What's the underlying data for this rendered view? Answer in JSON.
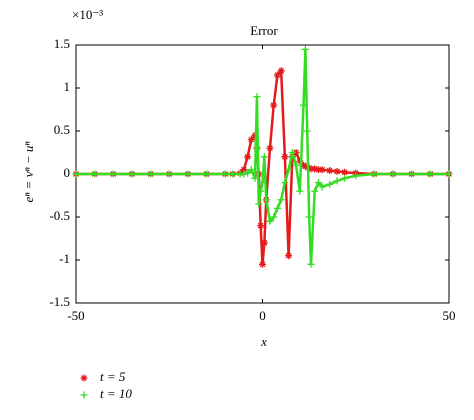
{
  "chart_data": {
    "type": "scatter",
    "title": "Error",
    "exponent_label": "×10⁻³",
    "xlabel": "x",
    "ylabel": "eⁿ = vⁿ − uⁿ",
    "x": [
      -50,
      -45,
      -40,
      -35,
      -30,
      -25,
      -20,
      -15,
      -10,
      -8,
      -6,
      -5,
      -4,
      -3,
      -2,
      -1.5,
      -1,
      -0.5,
      0,
      0.5,
      1,
      2,
      3,
      4,
      5,
      6,
      7,
      8,
      9,
      10,
      11,
      11.5,
      12,
      12.5,
      13,
      14,
      15,
      16,
      18,
      20,
      22,
      25,
      30,
      35,
      40,
      45,
      50
    ],
    "series": [
      {
        "name": "t = 5",
        "color": "#e41a1c",
        "marker": "*",
        "values": [
          0,
          0,
          0,
          0,
          0,
          0,
          0,
          0,
          0,
          0,
          0.01,
          0.05,
          0.2,
          0.4,
          0.45,
          0.3,
          0,
          -0.6,
          -1.05,
          -0.8,
          -0.3,
          0.3,
          0.8,
          1.15,
          1.2,
          0.2,
          -0.95,
          0.2,
          0.25,
          0.15,
          0.1,
          0.09,
          0.08,
          0.07,
          0.06,
          0.06,
          0.05,
          0.05,
          0.04,
          0.03,
          0.02,
          0.01,
          0,
          0,
          0,
          0,
          0
        ]
      },
      {
        "name": "t = 10",
        "color": "#33dd22",
        "marker": "+",
        "values": [
          0,
          0,
          0,
          0,
          0,
          0,
          0,
          0,
          0,
          0,
          0,
          0,
          0.01,
          0.05,
          -0.05,
          0.9,
          -0.35,
          -0.2,
          -0.1,
          0.2,
          -0.3,
          -0.55,
          -0.5,
          -0.4,
          -0.3,
          -0.1,
          0.05,
          0.25,
          0.1,
          -0.2,
          0.8,
          1.45,
          0.5,
          -0.5,
          -1.05,
          -0.2,
          -0.1,
          -0.15,
          -0.12,
          -0.08,
          -0.05,
          -0.02,
          0,
          0,
          0,
          0,
          0
        ]
      }
    ],
    "xlim": [
      -50,
      50
    ],
    "xticks": [
      -50,
      0,
      50
    ],
    "ylim": [
      -1.5,
      1.5
    ],
    "yticks": [
      -1.5,
      -1,
      -0.5,
      0,
      0.5,
      1,
      1.5
    ]
  }
}
